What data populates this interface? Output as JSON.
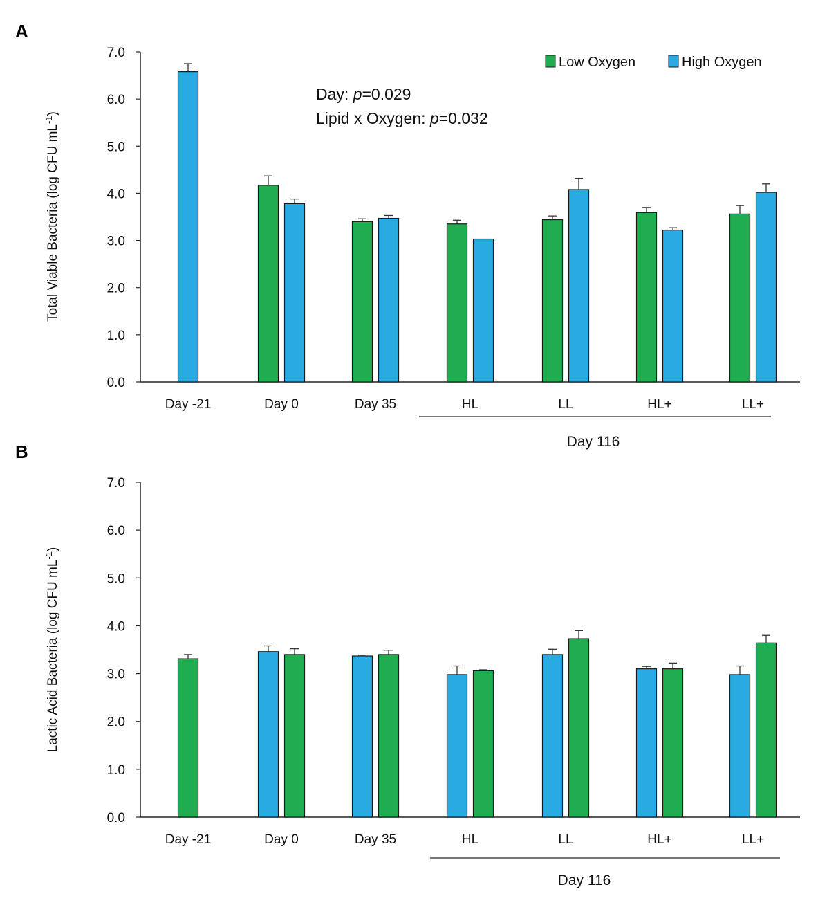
{
  "chart_data": [
    {
      "panel": "A",
      "type": "bar",
      "ylabel": "Total Viable Bacteria (log CFU mL",
      "ylabel_sup": "-1",
      "ylabel_close": ")",
      "ylim": [
        0,
        7
      ],
      "yticks": [
        "0.0",
        "1.0",
        "2.0",
        "3.0",
        "4.0",
        "5.0",
        "6.0",
        "7.0"
      ],
      "categories": [
        "Day -21",
        "Day 0",
        "Day 35",
        "HL",
        "LL",
        "HL+",
        "LL+"
      ],
      "group_label": "Day 116",
      "legend": [
        {
          "name": "Low Oxygen",
          "color": "#1fad4f"
        },
        {
          "name": "High Oxygen",
          "color": "#29abe2"
        }
      ],
      "series": [
        {
          "name": "Low Oxygen",
          "color": "#1fad4f",
          "values": [
            null,
            4.17,
            3.4,
            3.35,
            3.44,
            3.59,
            3.56
          ],
          "errors": [
            null,
            0.2,
            0.06,
            0.08,
            0.08,
            0.11,
            0.18
          ]
        },
        {
          "name": "High Oxygen",
          "color": "#29abe2",
          "values": [
            6.58,
            3.78,
            3.47,
            3.03,
            4.08,
            3.22,
            4.02
          ],
          "errors": [
            0.17,
            0.1,
            0.06,
            0.0,
            0.24,
            0.05,
            0.18
          ]
        }
      ],
      "annotations": [
        {
          "text": "Day: ",
          "italic": "p",
          "rest": "=0.029"
        },
        {
          "text": "Lipid x Oxygen: ",
          "italic": "p",
          "rest": "=0.032"
        }
      ]
    },
    {
      "panel": "B",
      "type": "bar",
      "ylabel": "Lactic Acid Bacteria (log CFU mL",
      "ylabel_sup": "-1",
      "ylabel_close": ")",
      "ylim": [
        0,
        7
      ],
      "yticks": [
        "0.0",
        "1.0",
        "2.0",
        "3.0",
        "4.0",
        "5.0",
        "6.0",
        "7.0"
      ],
      "categories": [
        "Day -21",
        "Day 0",
        "Day 35",
        "HL",
        "LL",
        "HL+",
        "LL+"
      ],
      "group_label": "Day 116",
      "series": [
        {
          "name": "Blue",
          "color": "#29abe2",
          "values": [
            null,
            3.46,
            3.37,
            2.98,
            3.4,
            3.1,
            2.98
          ],
          "errors": [
            null,
            0.12,
            0.02,
            0.18,
            0.11,
            0.05,
            0.18
          ]
        },
        {
          "name": "Green",
          "color": "#1fad4f",
          "values": [
            3.31,
            3.4,
            3.4,
            3.06,
            3.73,
            3.1,
            3.64
          ],
          "errors": [
            0.09,
            0.12,
            0.09,
            0.02,
            0.17,
            0.12,
            0.16
          ]
        }
      ]
    }
  ]
}
